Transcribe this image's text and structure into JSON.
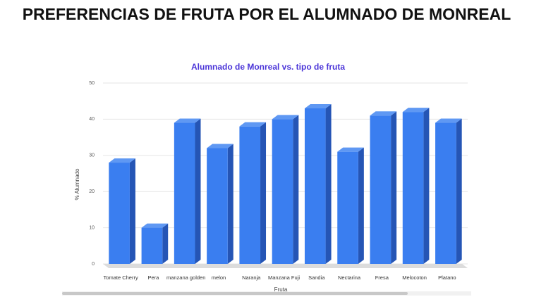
{
  "chart_data": {
    "type": "bar",
    "page_title": "PREFERENCIAS DE FRUTA POR EL ALUMNADO DE MONREAL",
    "title": "Alumnado de Monreal vs. tipo de fruta",
    "y_label": "% Alumnado",
    "x_label": "Fruta",
    "categories": [
      "Tomate Cherry",
      "Pera",
      "manzana golden",
      "melon",
      "Naranja",
      "Manzana Fuji",
      "Sandia",
      "Nectarina",
      "Fresa",
      "Melocoton",
      "Platano"
    ],
    "values": [
      28,
      10,
      39,
      32,
      38,
      40,
      43,
      31,
      41,
      42,
      39
    ],
    "color": "#3a7ef0",
    "ylim": [
      0,
      50
    ],
    "yticks": [
      0,
      10,
      20,
      30,
      40,
      50
    ],
    "grid": true
  }
}
